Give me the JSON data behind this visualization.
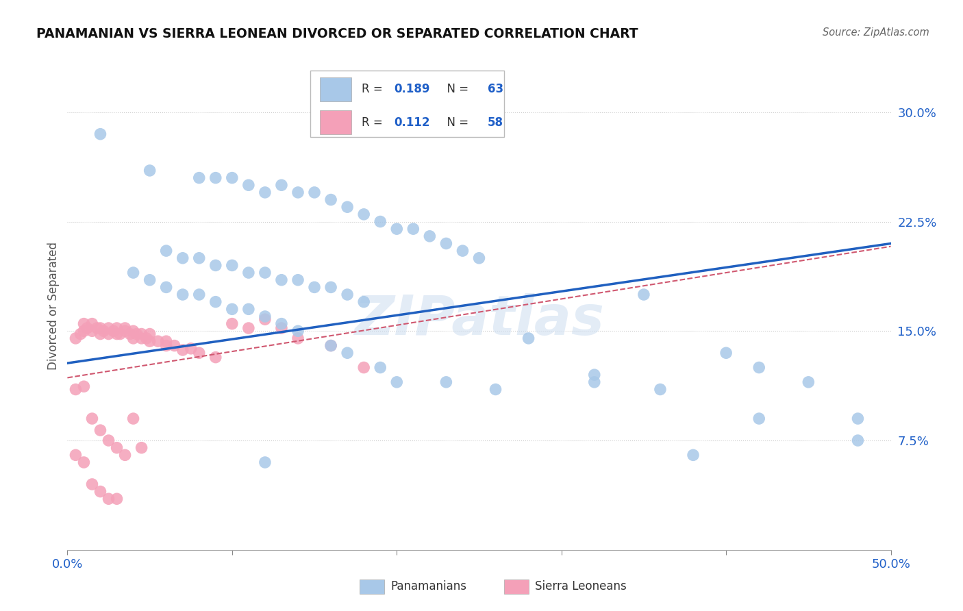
{
  "title": "PANAMANIAN VS SIERRA LEONEAN DIVORCED OR SEPARATED CORRELATION CHART",
  "source": "Source: ZipAtlas.com",
  "ylabel": "Divorced or Separated",
  "xlim": [
    0.0,
    0.5
  ],
  "ylim": [
    0.0,
    0.335
  ],
  "yticks": [
    0.075,
    0.15,
    0.225,
    0.3
  ],
  "ytick_labels": [
    "7.5%",
    "15.0%",
    "22.5%",
    "30.0%"
  ],
  "xticks": [
    0.0,
    0.1,
    0.2,
    0.3,
    0.4,
    0.5
  ],
  "xtick_labels_show": [
    "0.0%",
    "",
    "",
    "",
    "",
    "50.0%"
  ],
  "blue_R": 0.189,
  "blue_N": 63,
  "pink_R": 0.112,
  "pink_N": 58,
  "blue_color": "#a8c8e8",
  "pink_color": "#f4a0b8",
  "blue_line_color": "#2060c0",
  "pink_line_color": "#d05870",
  "accent_color": "#2060c8",
  "legend_label_blue": "Panamanians",
  "legend_label_pink": "Sierra Leoneans",
  "watermark": "ZIPatlas",
  "blue_points_x": [
    0.02,
    0.05,
    0.08,
    0.09,
    0.1,
    0.11,
    0.12,
    0.13,
    0.14,
    0.15,
    0.16,
    0.17,
    0.18,
    0.19,
    0.2,
    0.21,
    0.22,
    0.23,
    0.24,
    0.25,
    0.06,
    0.07,
    0.08,
    0.09,
    0.1,
    0.11,
    0.12,
    0.13,
    0.14,
    0.15,
    0.16,
    0.17,
    0.18,
    0.04,
    0.05,
    0.06,
    0.07,
    0.08,
    0.09,
    0.1,
    0.11,
    0.12,
    0.13,
    0.14,
    0.16,
    0.17,
    0.19,
    0.35,
    0.4,
    0.42,
    0.45,
    0.48,
    0.32,
    0.2,
    0.23,
    0.26,
    0.28,
    0.32,
    0.36,
    0.42,
    0.48,
    0.38,
    0.12
  ],
  "blue_points_y": [
    0.285,
    0.26,
    0.255,
    0.255,
    0.255,
    0.25,
    0.245,
    0.25,
    0.245,
    0.245,
    0.24,
    0.235,
    0.23,
    0.225,
    0.22,
    0.22,
    0.215,
    0.21,
    0.205,
    0.2,
    0.205,
    0.2,
    0.2,
    0.195,
    0.195,
    0.19,
    0.19,
    0.185,
    0.185,
    0.18,
    0.18,
    0.175,
    0.17,
    0.19,
    0.185,
    0.18,
    0.175,
    0.175,
    0.17,
    0.165,
    0.165,
    0.16,
    0.155,
    0.15,
    0.14,
    0.135,
    0.125,
    0.175,
    0.135,
    0.125,
    0.115,
    0.09,
    0.115,
    0.115,
    0.115,
    0.11,
    0.145,
    0.12,
    0.11,
    0.09,
    0.075,
    0.065,
    0.06
  ],
  "pink_points_x": [
    0.005,
    0.008,
    0.01,
    0.01,
    0.012,
    0.015,
    0.015,
    0.018,
    0.02,
    0.02,
    0.022,
    0.025,
    0.025,
    0.028,
    0.03,
    0.03,
    0.032,
    0.035,
    0.035,
    0.038,
    0.04,
    0.04,
    0.042,
    0.045,
    0.045,
    0.048,
    0.05,
    0.05,
    0.055,
    0.06,
    0.06,
    0.065,
    0.07,
    0.075,
    0.08,
    0.09,
    0.1,
    0.11,
    0.12,
    0.13,
    0.14,
    0.16,
    0.18,
    0.005,
    0.01,
    0.015,
    0.02,
    0.025,
    0.03,
    0.035,
    0.04,
    0.045,
    0.005,
    0.01,
    0.015,
    0.02,
    0.025,
    0.03
  ],
  "pink_points_y": [
    0.145,
    0.148,
    0.15,
    0.155,
    0.152,
    0.15,
    0.155,
    0.152,
    0.148,
    0.152,
    0.15,
    0.148,
    0.152,
    0.15,
    0.148,
    0.152,
    0.148,
    0.15,
    0.152,
    0.148,
    0.15,
    0.145,
    0.148,
    0.145,
    0.148,
    0.145,
    0.148,
    0.143,
    0.143,
    0.14,
    0.143,
    0.14,
    0.137,
    0.138,
    0.135,
    0.132,
    0.155,
    0.152,
    0.158,
    0.152,
    0.145,
    0.14,
    0.125,
    0.11,
    0.112,
    0.09,
    0.082,
    0.075,
    0.07,
    0.065,
    0.09,
    0.07,
    0.065,
    0.06,
    0.045,
    0.04,
    0.035,
    0.035
  ]
}
